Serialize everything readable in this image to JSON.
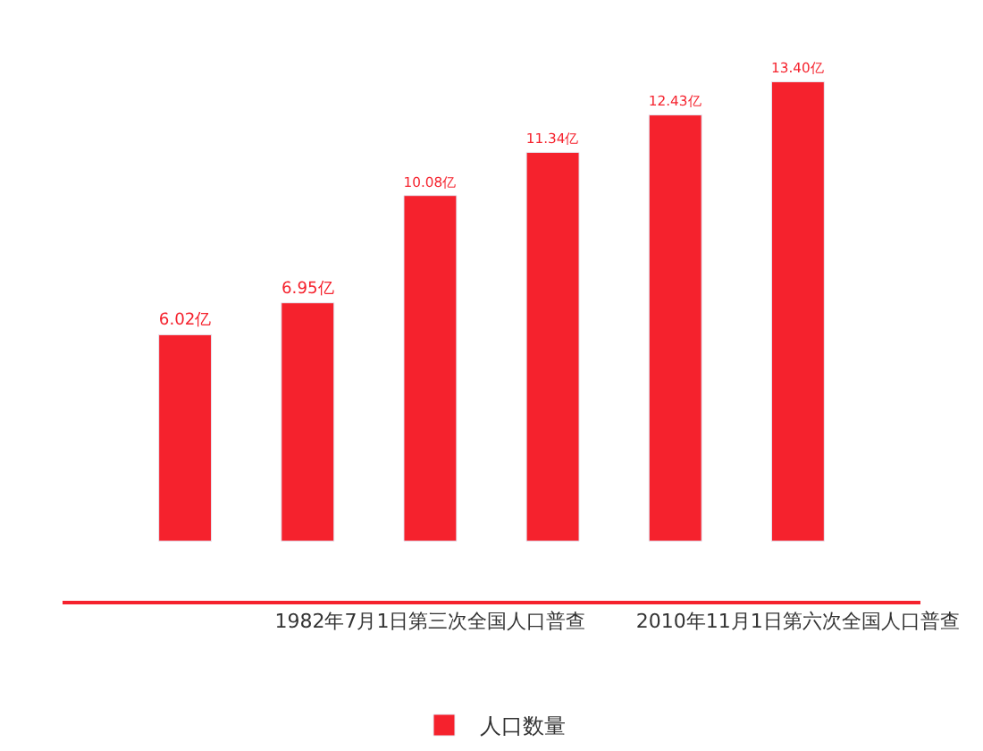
{
  "chart_data": {
    "type": "bar",
    "categories": [
      null,
      null,
      "1982年7月1日第三次全国人口普查",
      null,
      null,
      "2010年11月1日第六次全国人口普查"
    ],
    "series": [
      {
        "name": "人口数量",
        "color": "#f5222d",
        "values": [
          6.02,
          6.95,
          10.08,
          11.34,
          12.43,
          13.4
        ],
        "value_labels": [
          "6.02亿",
          "6.95亿",
          "10.08亿",
          "11.34亿",
          "12.43亿",
          "13.40亿"
        ]
      }
    ],
    "legend": "bottom"
  }
}
